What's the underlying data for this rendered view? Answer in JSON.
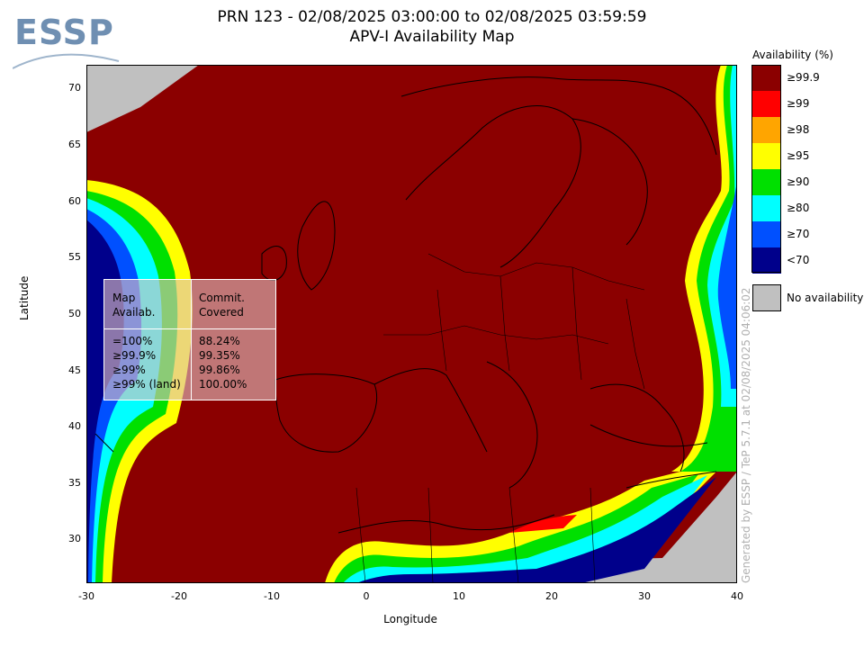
{
  "title": {
    "line1": "PRN 123 - 02/08/2025 03:00:00 to 02/08/2025 03:59:59",
    "line2": "APV-I Availability Map"
  },
  "logo": {
    "text": "ESSP"
  },
  "axes": {
    "xlabel": "Longitude",
    "ylabel": "Latitude",
    "x_ticks": [
      "-30",
      "-20",
      "-10",
      "0",
      "10",
      "20",
      "30",
      "40"
    ],
    "y_ticks": [
      "70",
      "65",
      "60",
      "55",
      "50",
      "45",
      "40",
      "35",
      "30"
    ],
    "xlim": [
      -30,
      40
    ],
    "ylim": [
      26,
      72
    ]
  },
  "legend": {
    "title": "Availability (%)",
    "items": [
      {
        "label": "≥99.9",
        "color": "#8b0000"
      },
      {
        "label": "≥99",
        "color": "#ff0000"
      },
      {
        "label": "≥98",
        "color": "#ffa500"
      },
      {
        "label": "≥95",
        "color": "#ffff00"
      },
      {
        "label": "≥90",
        "color": "#00e000"
      },
      {
        "label": "≥80",
        "color": "#00ffff"
      },
      {
        "label": "≥70",
        "color": "#0050ff"
      },
      {
        "label": "<70",
        "color": "#00008b"
      }
    ],
    "no_availability": {
      "label": "No availability",
      "color": "#c0c0c0"
    }
  },
  "stats_table": {
    "headers": {
      "col1": "Map\nAvailab.",
      "col2": "Commit.\nCovered"
    },
    "rows": [
      {
        "avail": "=100%",
        "covered": "88.24%"
      },
      {
        "avail": "≥99.9%",
        "covered": "99.35%"
      },
      {
        "avail": "≥99%",
        "covered": "99.86%"
      },
      {
        "avail": "≥99% (land)",
        "covered": "100.00%"
      }
    ]
  },
  "credit": "Generated by ESSP / TeP 5.7.1 at 02/08/2025 04:06:02"
}
